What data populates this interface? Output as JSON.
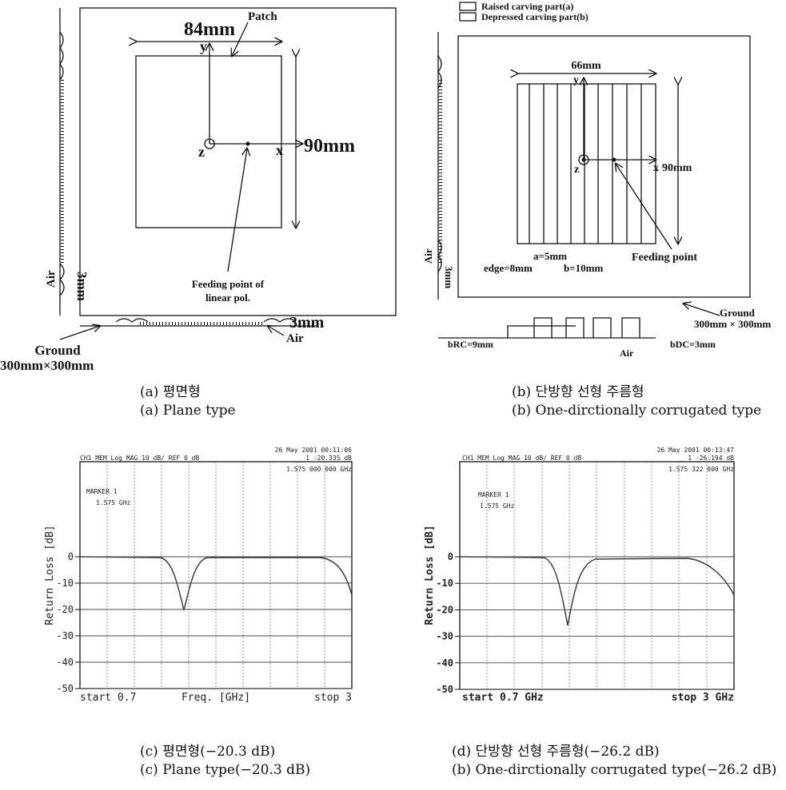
{
  "figure": {
    "panel_a": {
      "patch": "Patch",
      "dim_width": "84mm",
      "dim_height": "90mm",
      "axis_x": "x",
      "axis_y": "y",
      "axis_z": "z",
      "feed_line1": "Feeding point of",
      "feed_line2": "linear pol.",
      "air_side": "Air",
      "thick_side": "3mm",
      "thick_bottom": "3mm",
      "air_bottom": "Air",
      "ground": "Ground",
      "ground_size": "300mm×300mm",
      "caption_ko": "(a) 평면형",
      "caption_en": "(a) Plane type"
    },
    "panel_b": {
      "legend_a": "Raised carving part(a)",
      "legend_b": "Depressed carving part(b)",
      "dim_width": "66mm",
      "axis_x": "x",
      "axis_y": "y",
      "axis_z": "z",
      "dim_height": "90mm",
      "feed": "Feeding point",
      "a_dim": "a=5mm",
      "b_dim": "b=10mm",
      "edge_dim": "edge=8mm",
      "air_side": "Air",
      "thick_side": "3mm",
      "ground": "Ground",
      "ground_size": "300mm × 300mm",
      "b_rc": "bRC=9mm",
      "b_dc": "bDC=3mm",
      "air_bottom": "Air",
      "caption_ko": "(b) 단방향 선형 주름형",
      "caption_en": "(b) One-dirctionally corrugated type"
    },
    "panel_c": {
      "header_left": "CH1 MEM  Log MAG    10 dB/  REF 0 dB",
      "date": "26 May 2001  00:11:06",
      "marker_value": "1 -20.335 dB",
      "marker_freq": "1.575 000 000 GHz",
      "marker_label": "MARKER 1",
      "marker_label_freq": "1.575 GHz",
      "y_label": "Return Loss [dB]",
      "yticks": [
        0,
        -10,
        -20,
        -30,
        -40,
        -50
      ],
      "x_start": "start 0.7",
      "x_label": "Freq. [GHz]",
      "x_stop": "stop 3",
      "caption_ko": "(c) 평면형(−20.3 dB)",
      "caption_en": "(c) Plane type(−20.3 dB)"
    },
    "panel_d": {
      "header_left": "CH1 MEM  Log MAG   10 dB/  REF 0 dB",
      "date": "26 May 2001  00:13:47",
      "marker_value": "1 -26.194 dB",
      "marker_freq": "1.575 322 000 GHz",
      "marker_label": "MARKER 1",
      "marker_label_freq": "1.575 GHz",
      "y_label": "Return Loss [dB]",
      "yticks": [
        0,
        -10,
        -20,
        -30,
        -40,
        -50
      ],
      "x_start": "start 0.7 GHz",
      "x_stop": "stop 3 GHz",
      "caption_ko": "(d) 단방향 선형 주름형(−26.2 dB)",
      "caption_en": "(b) One-dirctionally corrugated type(−26.2 dB)"
    }
  }
}
